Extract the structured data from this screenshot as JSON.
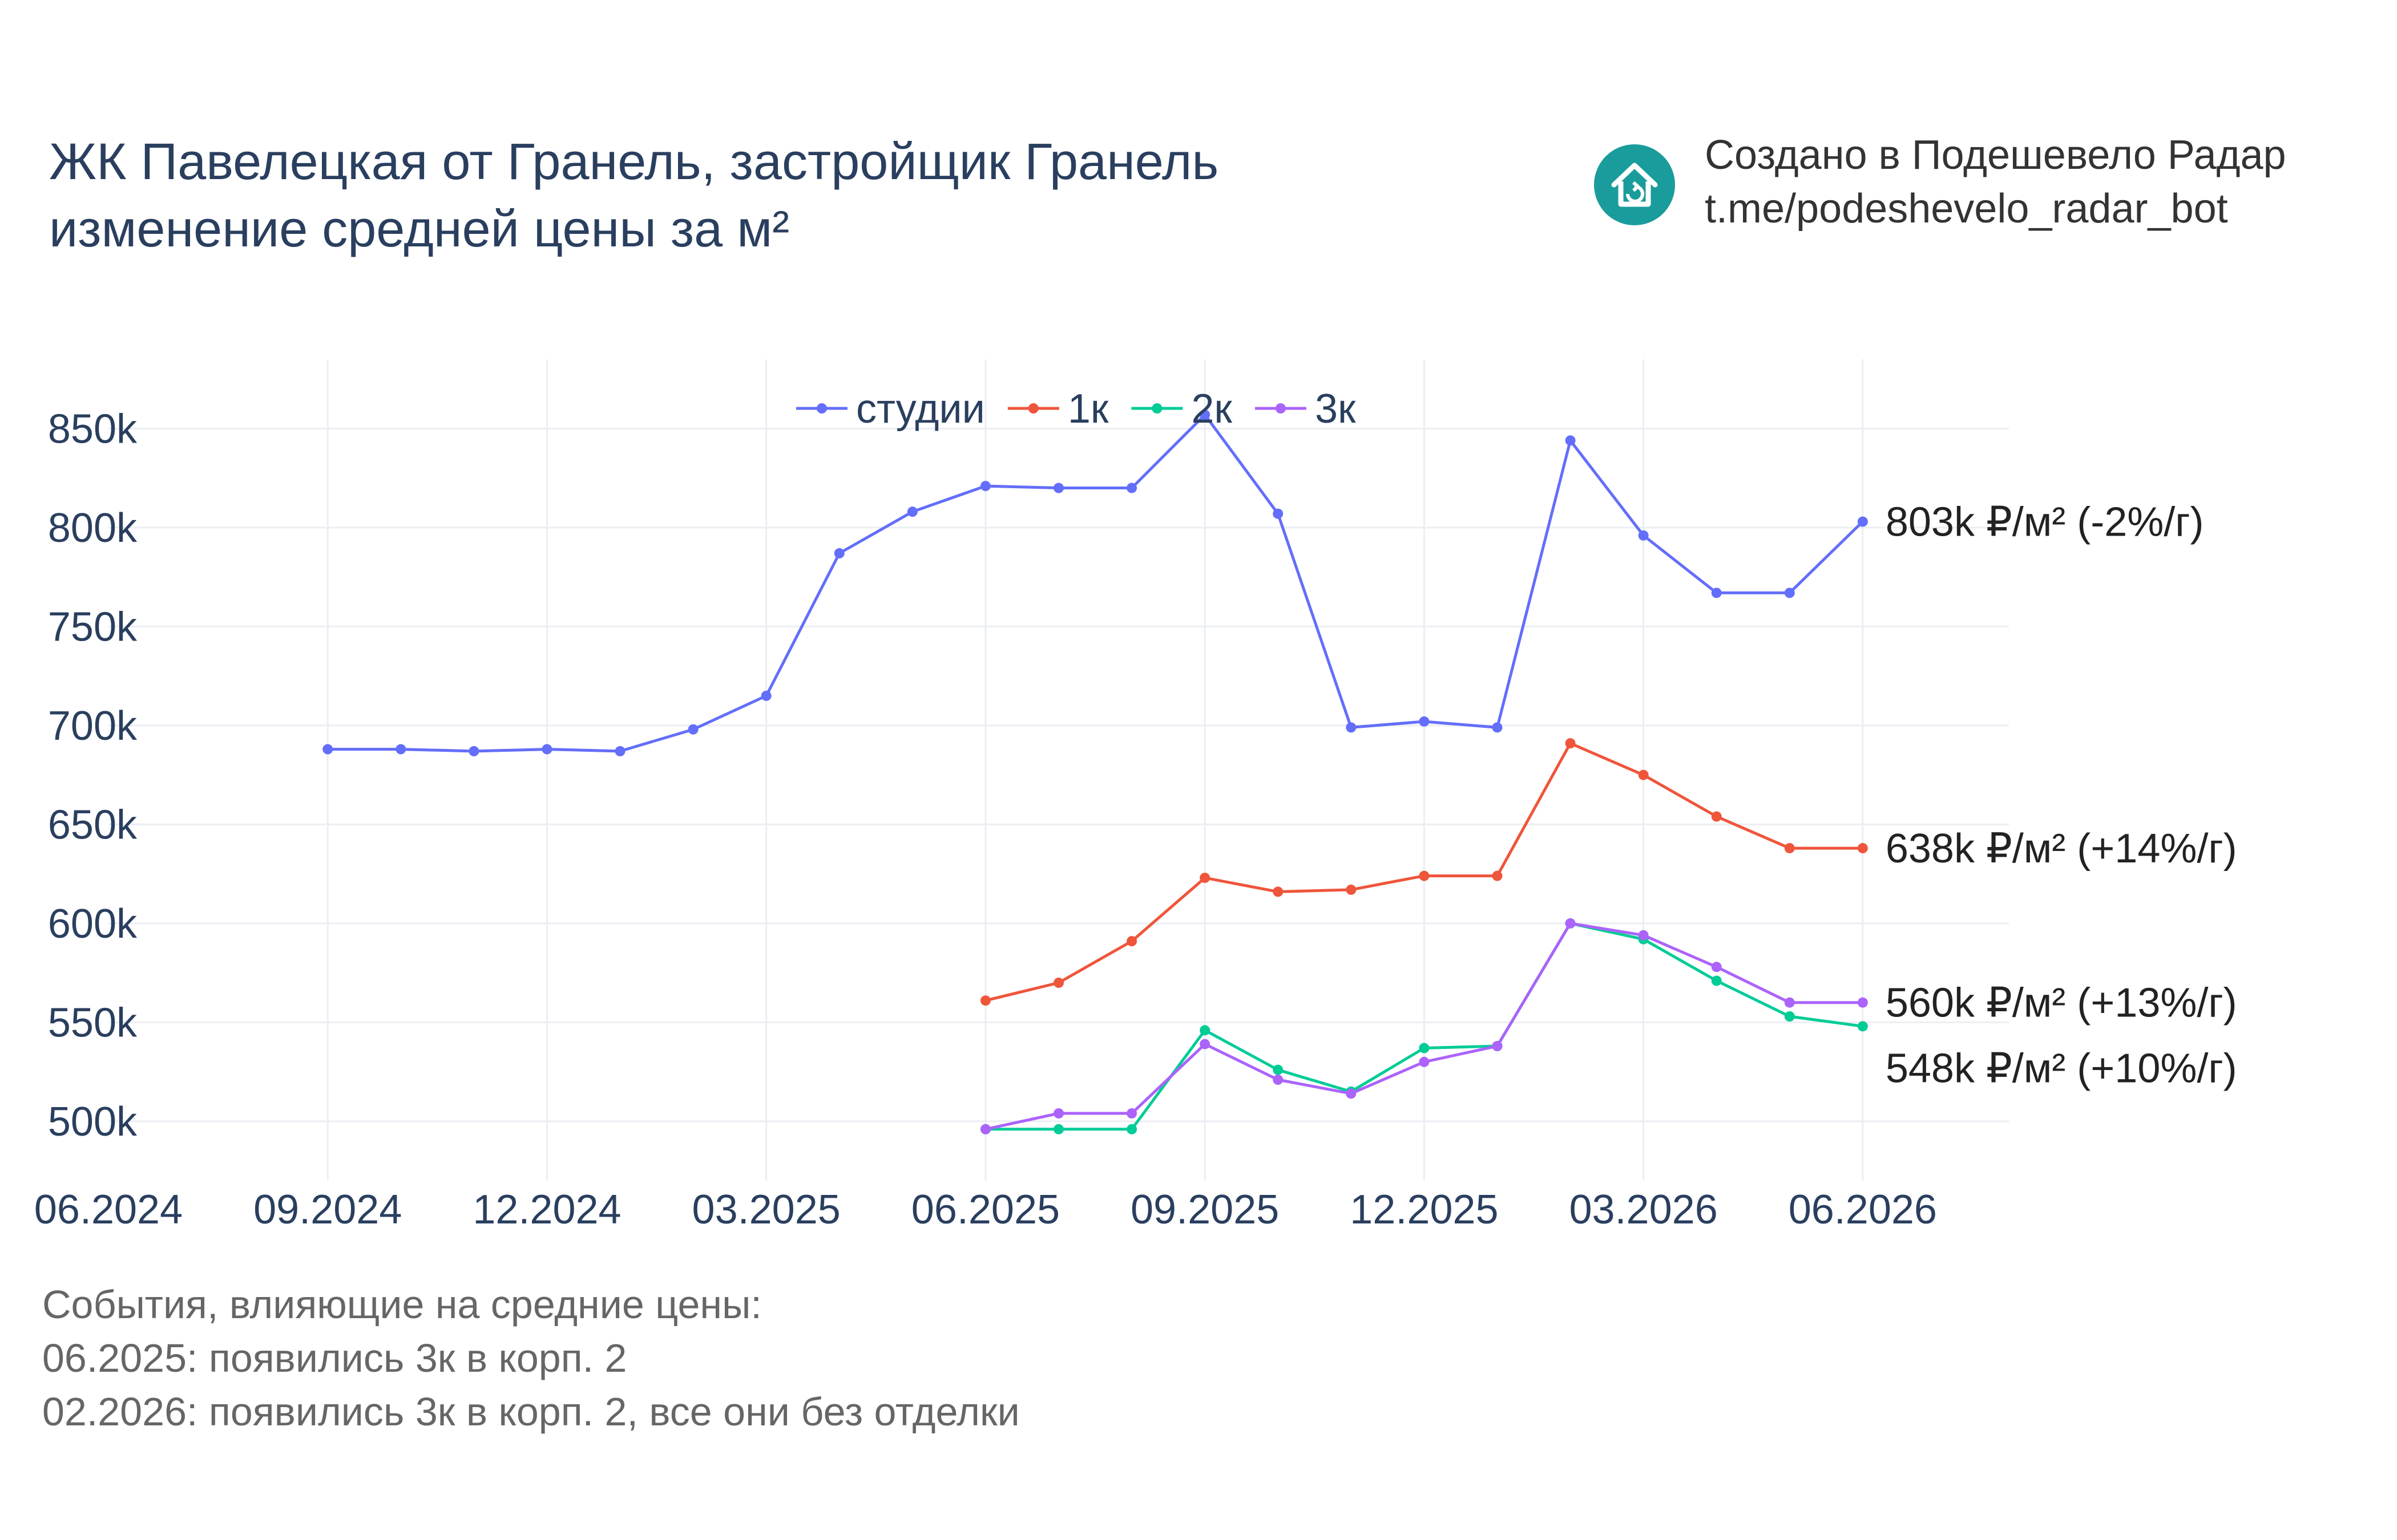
{
  "title_line1": "ЖК Павелецкая от Гранель, застройщик Гранель",
  "title_line2": "изменение средней цены за м²",
  "credit": {
    "line1": "Создано в Подешевело Радар",
    "line2": "t.me/podeshevelo_radar_bot",
    "logo_icon": "house-refresh-icon",
    "logo_color": "#1a9c9c"
  },
  "events": {
    "heading": "События, влияющие на средние цены:",
    "items": [
      "06.2025: появились 3к в корп. 2",
      "02.2026: появились 3к в корп. 2, все они без отделки"
    ]
  },
  "chart_data": {
    "type": "line",
    "x_ticks": [
      "06.2024",
      "09.2024",
      "12.2024",
      "03.2025",
      "06.2025",
      "09.2025",
      "12.2025",
      "03.2026",
      "06.2026"
    ],
    "y_ticks": [
      "500k",
      "550k",
      "600k",
      "650k",
      "700k",
      "750k",
      "800k",
      "850k"
    ],
    "y_tick_values": [
      500000,
      550000,
      600000,
      650000,
      700000,
      750000,
      800000,
      850000
    ],
    "x_range": [
      "2024-06",
      "2026-08"
    ],
    "y_range": [
      470000,
      885000
    ],
    "grid": true,
    "legend_position": "top-center",
    "series": [
      {
        "name": "студии",
        "color": "#636efa",
        "x": [
          "2024-09",
          "2024-10",
          "2024-11",
          "2024-12",
          "2025-01",
          "2025-02",
          "2025-03",
          "2025-04",
          "2025-05",
          "2025-06",
          "2025-07",
          "2025-08",
          "2025-09",
          "2025-10",
          "2025-11",
          "2025-12",
          "2026-01",
          "2026-02",
          "2026-03",
          "2026-04",
          "2026-05",
          "2026-06"
        ],
        "values": [
          688000,
          688000,
          687000,
          688000,
          687000,
          698000,
          715000,
          787000,
          808000,
          821000,
          820000,
          820000,
          857000,
          807000,
          699000,
          702000,
          699000,
          844000,
          796000,
          767000,
          767000,
          803000
        ],
        "end_label": "803k ₽/м² (-2%/г)"
      },
      {
        "name": "1к",
        "color": "#ef553b",
        "x": [
          "2025-06",
          "2025-07",
          "2025-08",
          "2025-09",
          "2025-10",
          "2025-11",
          "2025-12",
          "2026-01",
          "2026-02",
          "2026-03",
          "2026-04",
          "2026-05",
          "2026-06"
        ],
        "values": [
          561000,
          570000,
          591000,
          623000,
          616000,
          617000,
          624000,
          624000,
          691000,
          675000,
          654000,
          638000,
          638000
        ],
        "end_label": "638k ₽/м² (+14%/г)"
      },
      {
        "name": "2к",
        "color": "#00cc96",
        "x": [
          "2025-06",
          "2025-07",
          "2025-08",
          "2025-09",
          "2025-10",
          "2025-11",
          "2025-12",
          "2026-01",
          "2026-02",
          "2026-03",
          "2026-04",
          "2026-05",
          "2026-06"
        ],
        "values": [
          496000,
          496000,
          496000,
          546000,
          526000,
          515000,
          537000,
          538000,
          600000,
          592000,
          571000,
          553000,
          548000
        ],
        "end_label": "548k ₽/м² (+10%/г)"
      },
      {
        "name": "3к",
        "color": "#ab63fa",
        "x": [
          "2025-06",
          "2025-07",
          "2025-08",
          "2025-09",
          "2025-10",
          "2025-11",
          "2025-12",
          "2026-01",
          "2026-02",
          "2026-03",
          "2026-04",
          "2026-05",
          "2026-06"
        ],
        "values": [
          496000,
          504000,
          504000,
          539000,
          521000,
          514000,
          530000,
          538000,
          600000,
          594000,
          578000,
          560000,
          560000
        ],
        "end_label": "560k ₽/м² (+13%/г)"
      }
    ]
  }
}
